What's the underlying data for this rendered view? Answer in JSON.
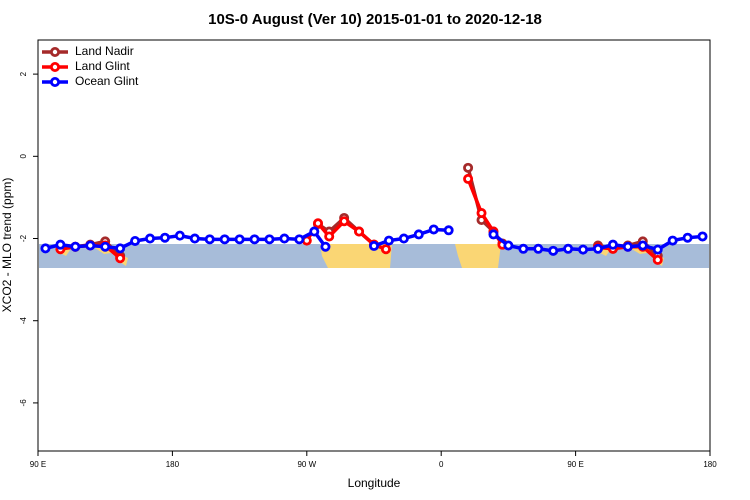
{
  "chart_data": {
    "type": "line",
    "title": "10S-0 August (Ver 10)   2015-01-01 to 2020-12-18",
    "x_label": "Longitude",
    "y_label": "XCO2 - MLO trend (ppm)",
    "xlim": [
      90,
      540
    ],
    "ylim": [
      -7.17,
      2.83
    ],
    "xticks": [
      {
        "value": 90,
        "label": "90 E"
      },
      180,
      {
        "value": 270,
        "label": "90 W"
      },
      {
        "value": 360,
        "label": "0"
      },
      {
        "value": 450,
        "label": "90 E"
      },
      {
        "value": 540,
        "label": "180"
      }
    ],
    "yticks": [
      2,
      0,
      -2,
      -4,
      -6
    ],
    "legend": "top-left",
    "series": [
      {
        "name": "Land Nadir",
        "color": "#a52a2a",
        "x": [
          105,
          115,
          125,
          135,
          145,
          null,
          277.5,
          285,
          295,
          305,
          315,
          null,
          378,
          387,
          395,
          401,
          null,
          465,
          475,
          485,
          495,
          505
        ],
        "values": [
          -2.17,
          -2.2,
          -2.15,
          -2.07,
          -2.42,
          null,
          -1.65,
          -1.83,
          -1.5,
          -1.83,
          -2.15,
          null,
          -0.28,
          -1.55,
          -1.83,
          -2.12,
          null,
          -2.17,
          -2.25,
          -2.17,
          -2.07,
          -2.42
        ]
      },
      {
        "name": "Land Glint",
        "color": "#ff0000",
        "x": [
          105,
          115,
          125,
          135,
          145,
          null,
          270,
          277.5,
          285,
          295,
          305,
          315,
          323,
          null,
          378,
          387,
          395,
          401,
          null,
          465,
          475,
          485,
          495,
          505
        ],
        "values": [
          -2.26,
          -2.2,
          -2.17,
          -2.17,
          -2.48,
          null,
          -2.05,
          -1.63,
          -1.95,
          -1.58,
          -1.83,
          -2.15,
          -2.26,
          null,
          -0.55,
          -1.38,
          -1.83,
          -2.15,
          null,
          -2.22,
          -2.25,
          -2.2,
          -2.2,
          -2.52
        ]
      },
      {
        "name": "Ocean Glint",
        "color": "#0000ff",
        "x": [
          95,
          105,
          115,
          125,
          135,
          145,
          155,
          165,
          175,
          185,
          195,
          205,
          215,
          225,
          235,
          245,
          255,
          265,
          275,
          282.5,
          null,
          315,
          325,
          335,
          345,
          355,
          365,
          null,
          395,
          405,
          415,
          425,
          435,
          445,
          455,
          465,
          475,
          485,
          495,
          505,
          515,
          525,
          535
        ],
        "values": [
          -2.24,
          -2.15,
          -2.2,
          -2.17,
          -2.2,
          -2.24,
          -2.06,
          -2.0,
          -1.98,
          -1.93,
          -2.0,
          -2.02,
          -2.02,
          -2.02,
          -2.02,
          -2.02,
          -2.0,
          -2.02,
          -1.83,
          -2.2,
          null,
          -2.18,
          -2.05,
          -2.0,
          -1.9,
          -1.78,
          -1.8,
          null,
          -1.9,
          -2.17,
          -2.25,
          -2.25,
          -2.3,
          -2.25,
          -2.27,
          -2.25,
          -2.15,
          -2.2,
          -2.17,
          -2.27,
          -2.05,
          -1.98,
          -1.95
        ]
      }
    ]
  }
}
